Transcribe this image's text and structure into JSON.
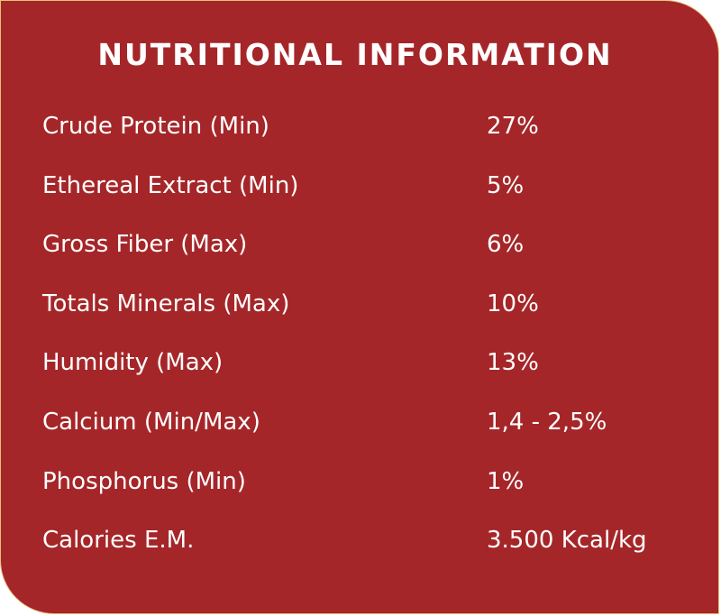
{
  "title": "NUTRITIONAL INFORMATION",
  "rows": [
    {
      "label": "Crude Protein (Min)",
      "value": "27%"
    },
    {
      "label": "Ethereal Extract (Min)",
      "value": "5%"
    },
    {
      "label": "Gross Fiber (Max)",
      "value": "6%"
    },
    {
      "label": "Totals Minerals (Max)",
      "value": "10%"
    },
    {
      "label": "Humidity (Max)",
      "value": "13%"
    },
    {
      "label": "Calcium (Min/Max)",
      "value": "1,4 - 2,5%"
    },
    {
      "label": "Phosphorus (Min)",
      "value": "1%"
    },
    {
      "label": "Calories  E.M.",
      "value": "3.500 Kcal/kg"
    }
  ],
  "colors": {
    "background": "#a52629",
    "border": "#e6c27a",
    "text": "#ffffff"
  }
}
